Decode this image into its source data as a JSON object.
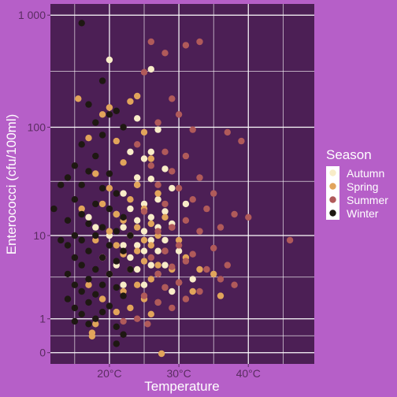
{
  "chart_data": {
    "type": "scatter",
    "xlabel": "Temperature",
    "ylabel": "Enterococci (cfu/100ml)",
    "x_scale": "linear",
    "y_scale": "log10(y+1)",
    "xlim": [
      11.5,
      49.5
    ],
    "ylim": [
      -0.1,
      3.1
    ],
    "x_ticks": [
      20,
      30,
      40
    ],
    "x_tick_labels": [
      "20°C",
      "30°C",
      "40°C"
    ],
    "y_ticks": [
      0,
      1,
      10,
      100,
      1000
    ],
    "y_tick_labels": [
      "0",
      "1",
      "10",
      "100",
      "1 000"
    ],
    "grid": true,
    "legend": {
      "title": "Season",
      "placement": "right"
    },
    "colors": {
      "panel": "#4c1f55",
      "background": "#b65fc8",
      "grid": "#ffffff"
    },
    "series": [
      {
        "name": "Autumn",
        "color": "#f8ecc8",
        "points": [
          [
            20,
            400
          ],
          [
            26,
            330
          ],
          [
            24,
            120
          ],
          [
            27,
            95
          ],
          [
            23,
            60
          ],
          [
            25,
            52
          ],
          [
            28,
            42
          ],
          [
            26,
            34
          ],
          [
            24,
            30
          ],
          [
            29,
            28
          ],
          [
            22,
            25
          ],
          [
            27,
            22
          ],
          [
            25,
            20
          ],
          [
            23,
            18
          ],
          [
            28,
            17
          ],
          [
            21,
            16
          ],
          [
            26,
            15
          ],
          [
            24,
            14
          ],
          [
            29,
            13
          ],
          [
            22,
            12
          ],
          [
            27,
            12
          ],
          [
            25,
            11
          ],
          [
            23,
            10
          ],
          [
            20,
            10
          ],
          [
            28,
            9
          ],
          [
            26,
            9
          ],
          [
            24,
            8
          ],
          [
            22,
            8
          ],
          [
            27,
            7
          ],
          [
            25,
            7
          ],
          [
            30,
            7
          ],
          [
            23,
            6
          ],
          [
            19,
            6
          ],
          [
            26,
            5
          ],
          [
            28,
            5
          ],
          [
            21,
            5
          ],
          [
            24,
            4.5
          ],
          [
            27,
            4
          ],
          [
            32,
            3.5
          ],
          [
            25,
            3
          ],
          [
            22,
            3
          ],
          [
            29,
            2.5
          ],
          [
            17,
            15
          ],
          [
            18,
            12
          ],
          [
            31,
            20
          ],
          [
            26,
            60
          ],
          [
            24,
            35
          ]
        ]
      },
      {
        "name": "Spring",
        "color": "#e1a45b",
        "points": [
          [
            15.5,
            180
          ],
          [
            20,
            150
          ],
          [
            23,
            170
          ],
          [
            24,
            190
          ],
          [
            19,
            130
          ],
          [
            17,
            80
          ],
          [
            21,
            75
          ],
          [
            25,
            90
          ],
          [
            22,
            48
          ],
          [
            26,
            52
          ],
          [
            18,
            38
          ],
          [
            24,
            30
          ],
          [
            20,
            28
          ],
          [
            27,
            25
          ],
          [
            23,
            22
          ],
          [
            19,
            20
          ],
          [
            25,
            18
          ],
          [
            21,
            16
          ],
          [
            28,
            15
          ],
          [
            16,
            18
          ],
          [
            22,
            14
          ],
          [
            26,
            13
          ],
          [
            24,
            12
          ],
          [
            29,
            12
          ],
          [
            20,
            11
          ],
          [
            23,
            10
          ],
          [
            27,
            10
          ],
          [
            18,
            9
          ],
          [
            25,
            9
          ],
          [
            30,
            9
          ],
          [
            21,
            8
          ],
          [
            26,
            8
          ],
          [
            24,
            7
          ],
          [
            28,
            7
          ],
          [
            22,
            6.5
          ],
          [
            31,
            6
          ],
          [
            19,
            6
          ],
          [
            25,
            5.5
          ],
          [
            27,
            5
          ],
          [
            23,
            4.5
          ],
          [
            29,
            4.5
          ],
          [
            33,
            4.5
          ],
          [
            35,
            4
          ],
          [
            20,
            4
          ],
          [
            26,
            3.5
          ],
          [
            30,
            3.2
          ],
          [
            24,
            3
          ],
          [
            17,
            3
          ],
          [
            28,
            2.8
          ],
          [
            22,
            2.5
          ],
          [
            32,
            2.5
          ],
          [
            36,
            2.2
          ],
          [
            25,
            2
          ],
          [
            19,
            2
          ],
          [
            27,
            1.8
          ],
          [
            23,
            1.5
          ],
          [
            21,
            1.3
          ],
          [
            26,
            1.2
          ],
          [
            18,
            0.8
          ],
          [
            17.5,
            0.5
          ],
          [
            17.5,
            0.4
          ],
          [
            27.5,
            -0.02
          ]
        ]
      },
      {
        "name": "Summer",
        "color": "#b05a5a",
        "points": [
          [
            26,
            580
          ],
          [
            31,
            540
          ],
          [
            33,
            580
          ],
          [
            28,
            460
          ],
          [
            25,
            310
          ],
          [
            29,
            180
          ],
          [
            30,
            130
          ],
          [
            27,
            110
          ],
          [
            32,
            95
          ],
          [
            37,
            90
          ],
          [
            39,
            75
          ],
          [
            24,
            70
          ],
          [
            28,
            60
          ],
          [
            31,
            55
          ],
          [
            26,
            45
          ],
          [
            29,
            40
          ],
          [
            33,
            35
          ],
          [
            27,
            30
          ],
          [
            30,
            28
          ],
          [
            35,
            25
          ],
          [
            32,
            22
          ],
          [
            28,
            20
          ],
          [
            34,
            18
          ],
          [
            25,
            17
          ],
          [
            38,
            16
          ],
          [
            40,
            15
          ],
          [
            31,
            14
          ],
          [
            36,
            12
          ],
          [
            29,
            12
          ],
          [
            27,
            11
          ],
          [
            33,
            11
          ],
          [
            46,
            9
          ],
          [
            30,
            8
          ],
          [
            35,
            7.5
          ],
          [
            28,
            7
          ],
          [
            32,
            6.5
          ],
          [
            26,
            6
          ],
          [
            31,
            5.5
          ],
          [
            37,
            5
          ],
          [
            29,
            4.8
          ],
          [
            34,
            4.5
          ],
          [
            27,
            4
          ],
          [
            36,
            3.5
          ],
          [
            30,
            3.2
          ],
          [
            38,
            3
          ],
          [
            28,
            2.8
          ],
          [
            33,
            2.5
          ],
          [
            25,
            2.2
          ],
          [
            31,
            2
          ],
          [
            27,
            1.8
          ],
          [
            29,
            1.5
          ],
          [
            24,
            1
          ],
          [
            22,
            0.9
          ],
          [
            25.5,
            0.8
          ]
        ]
      },
      {
        "name": "Winter",
        "color": "#1e1812",
        "points": [
          [
            16,
            850
          ],
          [
            19,
            260
          ],
          [
            20,
            130
          ],
          [
            21,
            140
          ],
          [
            17,
            160
          ],
          [
            18,
            110
          ],
          [
            22,
            100
          ],
          [
            19,
            85
          ],
          [
            16,
            70
          ],
          [
            18,
            55
          ],
          [
            15,
            45
          ],
          [
            17,
            40
          ],
          [
            20,
            38
          ],
          [
            14,
            35
          ],
          [
            16,
            30
          ],
          [
            19,
            28
          ],
          [
            21,
            25
          ],
          [
            13,
            30
          ],
          [
            15,
            22
          ],
          [
            18,
            20
          ],
          [
            20,
            18
          ],
          [
            12,
            18
          ],
          [
            16,
            16
          ],
          [
            22,
            15
          ],
          [
            14,
            14
          ],
          [
            17,
            13
          ],
          [
            19,
            12
          ],
          [
            21,
            11
          ],
          [
            15,
            10
          ],
          [
            18,
            10
          ],
          [
            23,
            10
          ],
          [
            13,
            9
          ],
          [
            16,
            9
          ],
          [
            20,
            8
          ],
          [
            14,
            8
          ],
          [
            17,
            7
          ],
          [
            22,
            7
          ],
          [
            19,
            6
          ],
          [
            15,
            6
          ],
          [
            21,
            5.5
          ],
          [
            16,
            5
          ],
          [
            18,
            4.5
          ],
          [
            23,
            4.5
          ],
          [
            14,
            4
          ],
          [
            20,
            4
          ],
          [
            17,
            3.5
          ],
          [
            19,
            3
          ],
          [
            15,
            3
          ],
          [
            21,
            2.8
          ],
          [
            16,
            2.5
          ],
          [
            18,
            2.3
          ],
          [
            22,
            2.2
          ],
          [
            14,
            2
          ],
          [
            17,
            1.8
          ],
          [
            20,
            1.6
          ],
          [
            15,
            1.5
          ],
          [
            19,
            1.3
          ],
          [
            16,
            1.2
          ],
          [
            18,
            1
          ],
          [
            15,
            0.9
          ],
          [
            17,
            0.8
          ],
          [
            21,
            0.7
          ],
          [
            22,
            0.45
          ],
          [
            21,
            0.2
          ]
        ]
      }
    ]
  }
}
